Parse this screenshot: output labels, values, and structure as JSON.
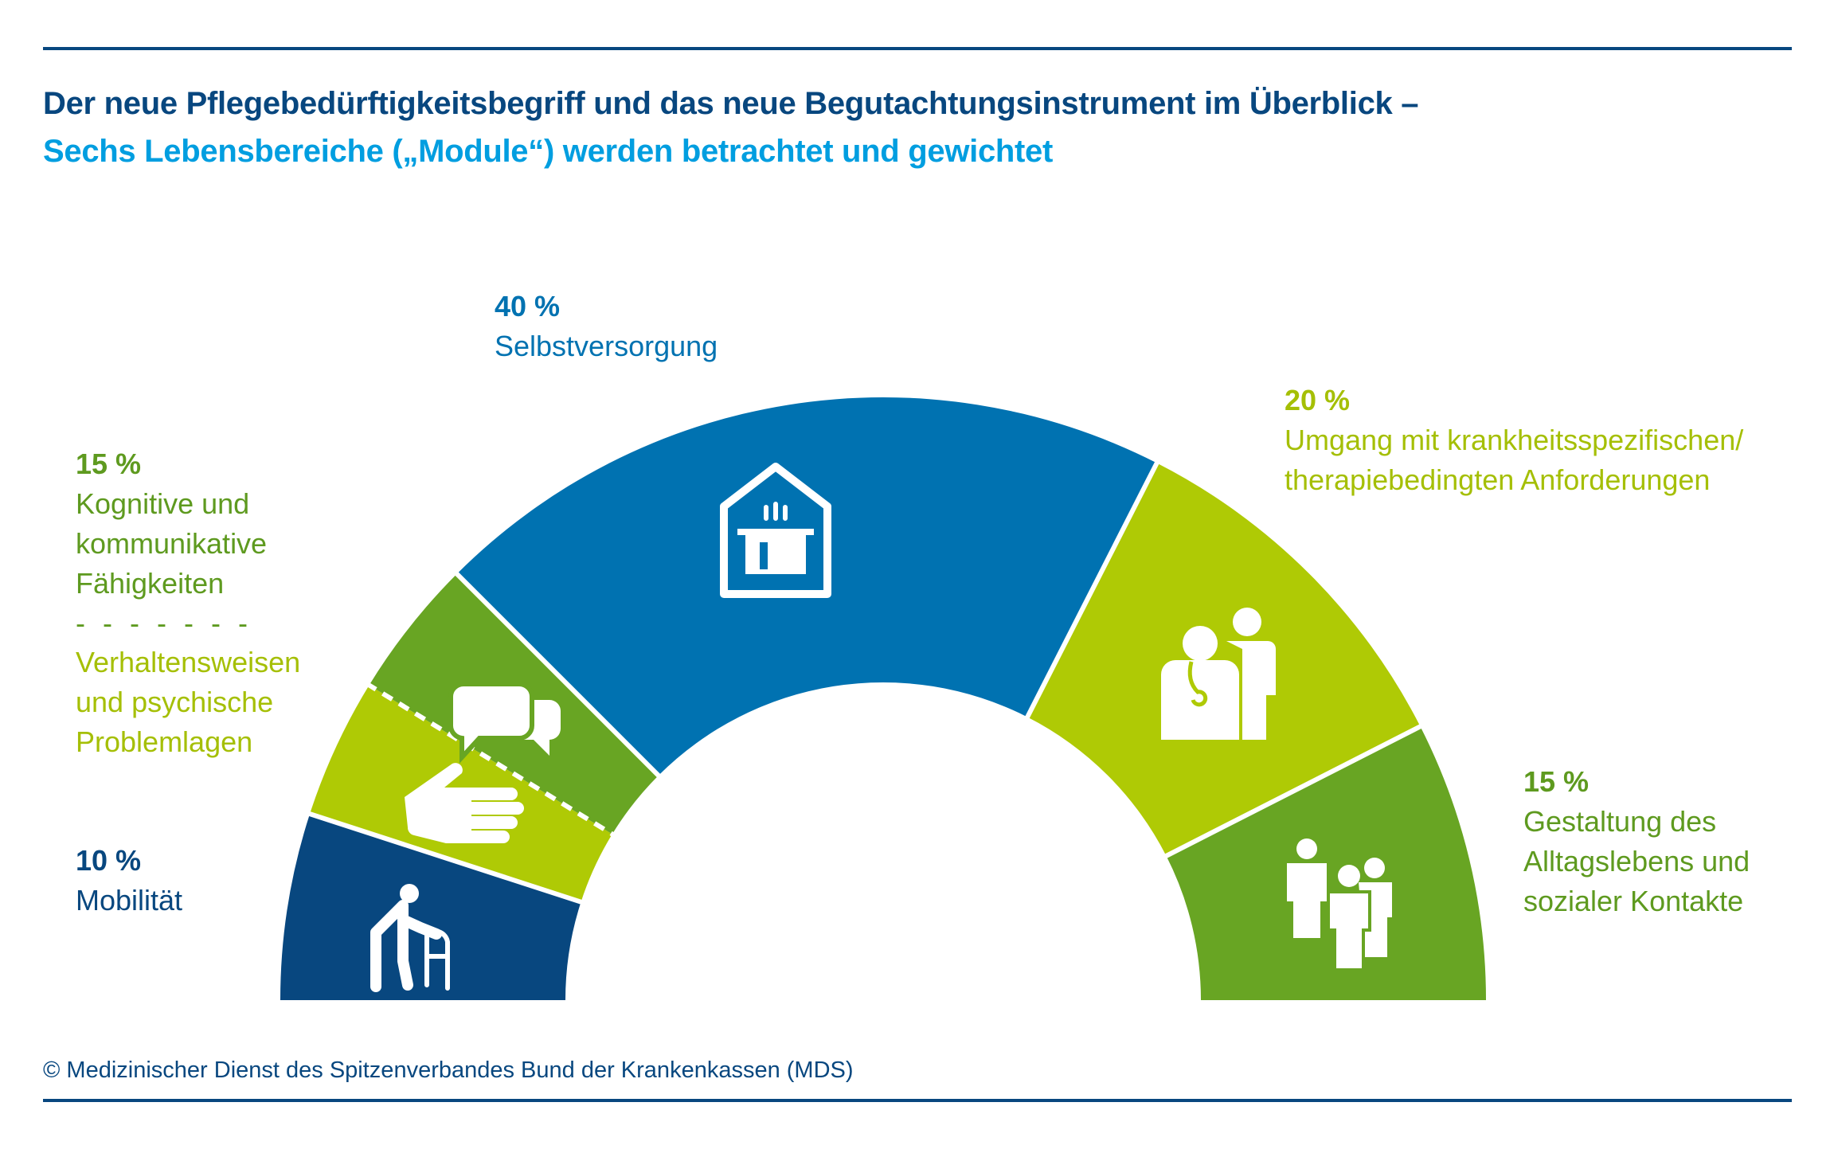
{
  "header": {
    "title": "Der neue Pflegebedürftigkeitsbegriff und das neue Begutachtungsinstrument im Überblick –",
    "subtitle": "Sechs Lebensbereiche („Module“) werden betrachtet und gewichtet"
  },
  "colors": {
    "dark_blue": "#08477f",
    "blue": "#0072b1",
    "lime": "#afca05",
    "green": "#68a523",
    "light_blue": "#009ee0"
  },
  "chart_data": {
    "type": "pie",
    "subtype": "half-donut",
    "title": "Sechs Lebensbereiche („Module“) werden betrachtet und gewichtet",
    "series": [
      {
        "name": "Mobilität",
        "value": 10,
        "value_label": "10 %",
        "color": "#08477f",
        "icon": "walker-icon",
        "lines": [
          "Mobilität"
        ]
      },
      {
        "name": "Kognitive und kommunikative Fähigkeiten / Verhaltensweisen und psychische Problemlagen",
        "value": 15,
        "value_label": "15 %",
        "parts": [
          {
            "name": "Verhaltensweisen und psychische Problemlagen",
            "color": "#afca05",
            "icon": "hand-icon",
            "lines": [
              "Verhaltensweisen",
              "und psychische",
              "Problemlagen"
            ]
          },
          {
            "name": "Kognitive und kommunikative Fähigkeiten",
            "color": "#68a523",
            "icon": "speech-bubbles-icon",
            "lines": [
              "Kognitive und",
              "kommunikative",
              "Fähigkeiten"
            ]
          }
        ],
        "separator": "- - - - - - -"
      },
      {
        "name": "Selbstversorgung",
        "value": 40,
        "value_label": "40 %",
        "color": "#0072b1",
        "icon": "house-cooking-pot-icon",
        "lines": [
          "Selbstversorgung"
        ]
      },
      {
        "name": "Umgang mit krankheitsspezifischen/therapiebedingten Anforderungen",
        "value": 20,
        "value_label": "20 %",
        "color": "#afca05",
        "icon": "doctor-patient-icon",
        "lines": [
          "Umgang mit krankheitsspezifischen/",
          "therapiebedingten Anforderungen"
        ]
      },
      {
        "name": "Gestaltung des Alltagslebens und sozialer Kontakte",
        "value": 15,
        "value_label": "15 %",
        "color": "#68a523",
        "icon": "people-group-icon",
        "lines": [
          "Gestaltung des",
          "Alltagslebens und",
          "sozialer Kontakte"
        ]
      }
    ]
  },
  "footer": {
    "copyright": "© Medizinischer Dienst des Spitzenverbandes Bund der Krankenkassen (MDS)"
  }
}
